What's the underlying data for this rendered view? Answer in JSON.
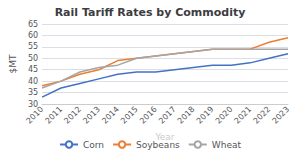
{
  "chart_data": {
    "type": "line",
    "title": "Rail Tariff Rates by Commodity",
    "xlabel": "Year",
    "ylabel": "$MT",
    "x": [
      2010,
      2011,
      2012,
      2013,
      2014,
      2015,
      2016,
      2017,
      2018,
      2019,
      2020,
      2021,
      2022,
      2023
    ],
    "series": [
      {
        "name": "Corn",
        "color": "#4472c4",
        "values": [
          33,
          37,
          39,
          41,
          43,
          44,
          44,
          45,
          46,
          47,
          47,
          48,
          50,
          52
        ]
      },
      {
        "name": "Soybeans",
        "color": "#ed7d31",
        "values": [
          38,
          40,
          43,
          45,
          49,
          50,
          51,
          52,
          53,
          54,
          54,
          54,
          57,
          59
        ]
      },
      {
        "name": "Wheat",
        "color": "#a5a5a5",
        "values": [
          37,
          40,
          44,
          46,
          47,
          50,
          51,
          52,
          53,
          54,
          54,
          54,
          54,
          54
        ]
      }
    ],
    "xlim": [
      2010,
      2023
    ],
    "xticks": [
      2010,
      2011,
      2012,
      2013,
      2014,
      2015,
      2016,
      2017,
      2018,
      2019,
      2020,
      2021,
      2022,
      2023
    ],
    "ylim": [
      30,
      65
    ],
    "yticks": [
      30,
      35,
      40,
      45,
      50,
      55,
      60,
      65
    ],
    "grid": true,
    "legend": "bottom"
  }
}
